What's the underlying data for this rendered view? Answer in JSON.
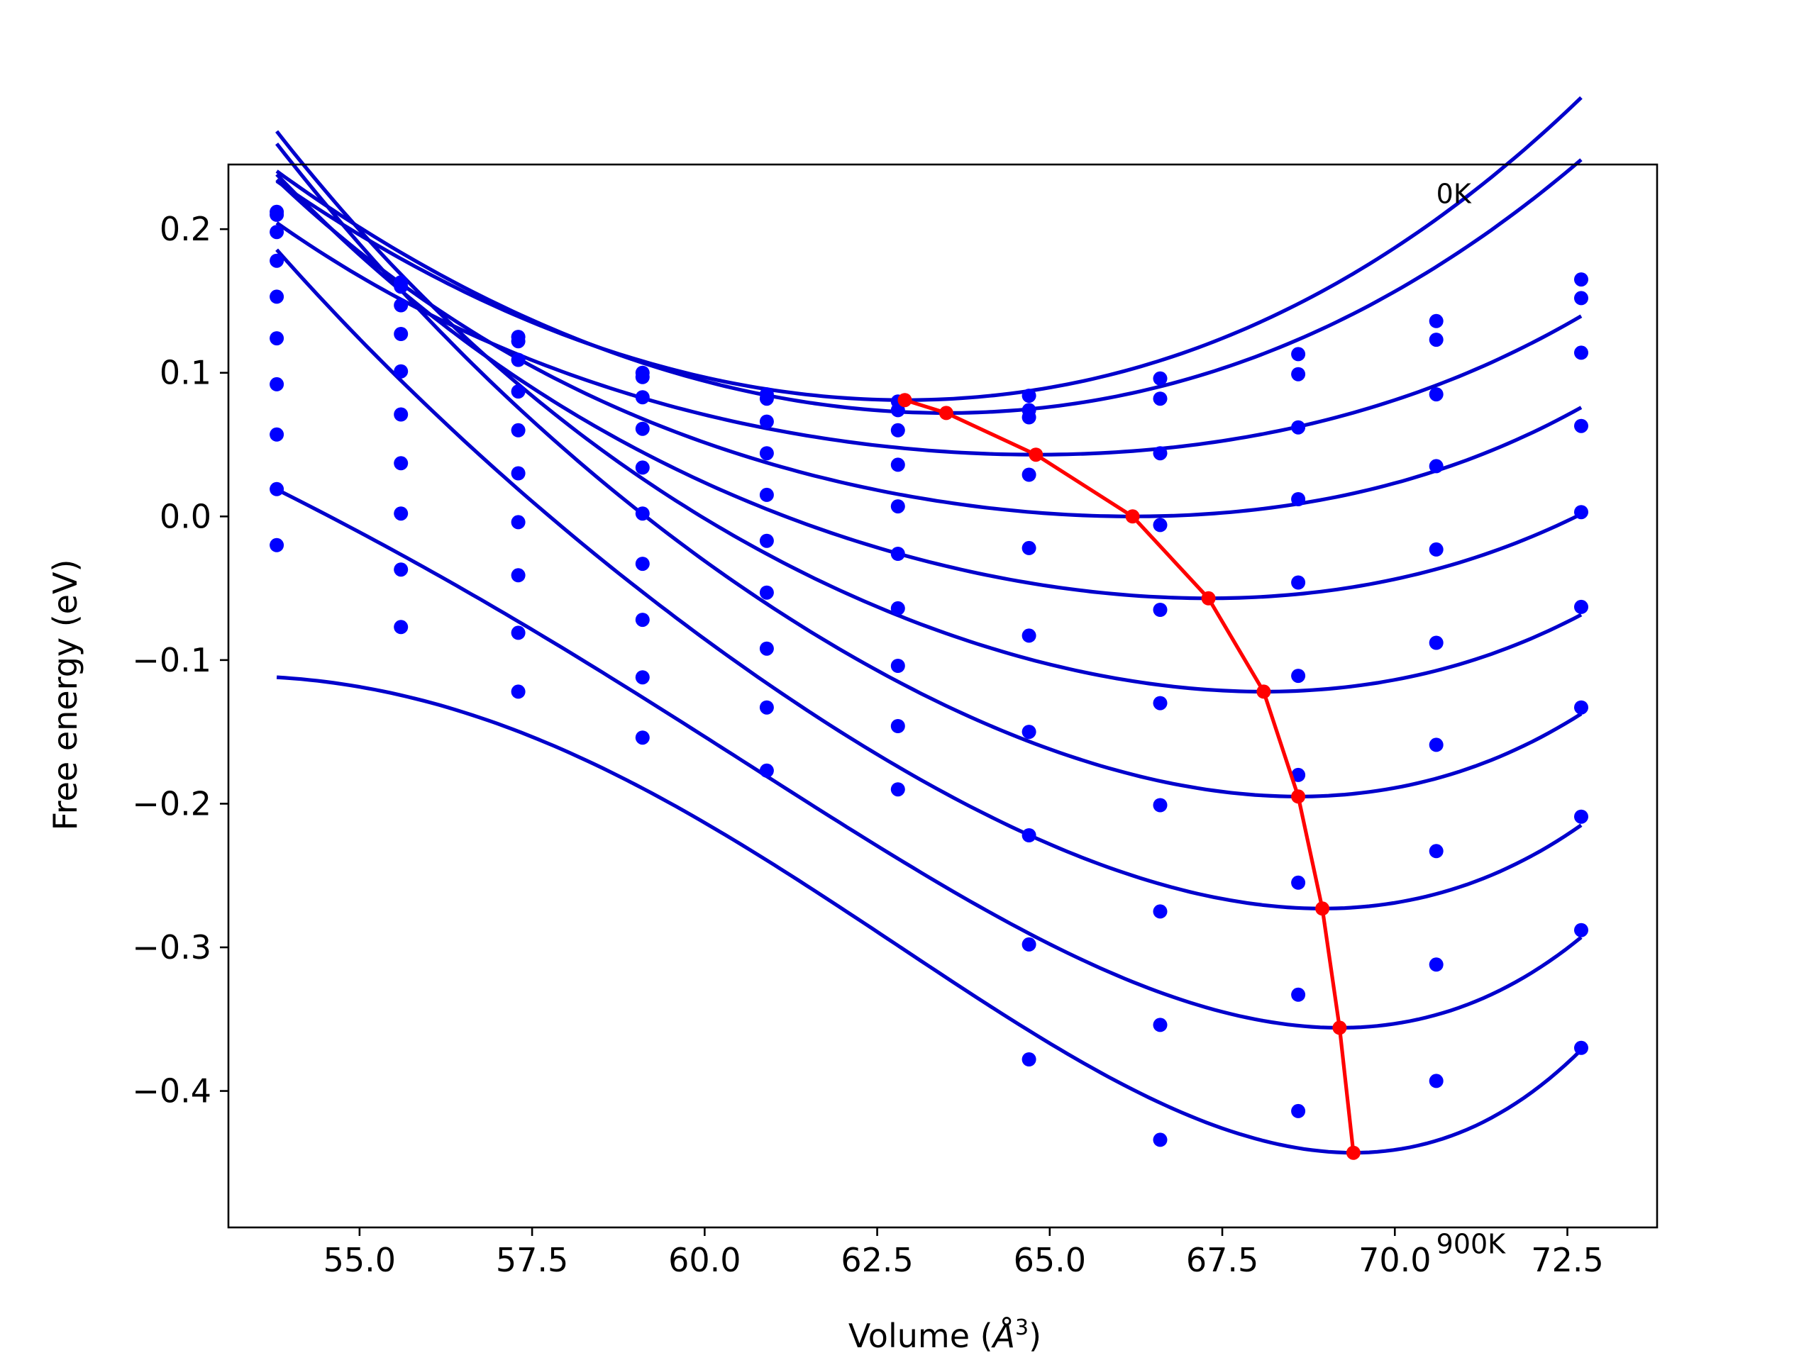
{
  "chart_data": {
    "type": "line",
    "xlabel": "Volume (",
    "xlabel_symbol": "Å",
    "xlabel_power": "3",
    "xlabel_close": ")",
    "ylabel": "Free energy (eV)",
    "xlim": [
      53.1,
      73.8
    ],
    "ylim": [
      -0.495,
      0.245
    ],
    "x_ticks": [
      55.0,
      57.5,
      60.0,
      62.5,
      65.0,
      67.5,
      70.0,
      72.5
    ],
    "x_tick_labels": [
      "55.0",
      "57.5",
      "60.0",
      "62.5",
      "65.0",
      "67.5",
      "70.0",
      "72.5"
    ],
    "y_ticks": [
      0.2,
      0.1,
      0.0,
      -0.1,
      -0.2,
      -0.3,
      -0.4
    ],
    "y_tick_labels": [
      "0.2",
      "0.1",
      "0.0",
      "−0.1",
      "−0.2",
      "−0.3",
      "−0.4"
    ],
    "annotations": [
      {
        "text": "0K",
        "x": 70.6,
        "y": 0.218
      },
      {
        "text": "900K",
        "x": 70.6,
        "y": -0.513
      }
    ],
    "grid": false,
    "legend": "none",
    "colors": {
      "points": "#0000ff",
      "fits": "#0000cc",
      "minima": "#ff0000"
    },
    "data_volumes": [
      53.8,
      55.6,
      57.3,
      59.1,
      60.9,
      62.8,
      64.7,
      66.6,
      68.6,
      70.6,
      72.7
    ],
    "series": [
      {
        "points": [
          0.212,
          0.163,
          0.125,
          0.1,
          0.085,
          0.08,
          0.084,
          0.096,
          0.113,
          0.136,
          0.165
        ],
        "fit": {
          "x0": 62.9,
          "y0": 0.081,
          "a": 0.00193,
          "b": 1.8e-05,
          "c": 9e-07
        }
      },
      {
        "points": [
          0.21,
          0.16,
          0.122,
          0.097,
          0.082,
          0.074,
          0.074,
          0.082,
          0.099,
          0.123,
          0.152
        ],
        "fit": {
          "x0": 63.5,
          "y0": 0.072,
          "a": 0.00186,
          "b": 1.6e-05,
          "c": 9e-07
        }
      },
      {
        "points": [
          0.198,
          0.147,
          0.109,
          0.083,
          0.066,
          0.06,
          0.069,
          0.044,
          0.062,
          0.085,
          0.114
        ],
        "fit": {
          "x0": 64.8,
          "y0": 0.043,
          "a": 0.00124,
          "b": 1.9e-05,
          "c": 2.5e-06
        }
      },
      {
        "points": [
          0.178,
          0.127,
          0.087,
          0.061,
          0.044,
          0.036,
          0.029,
          -0.006,
          0.012,
          0.035,
          0.063
        ],
        "fit": {
          "x0": 66.2,
          "y0": 0.0,
          "a": 0.00142,
          "b": 3.5e-05,
          "c": 3.5e-06
        }
      },
      {
        "points": [
          0.153,
          0.101,
          0.06,
          0.034,
          0.015,
          0.007,
          -0.022,
          -0.065,
          -0.046,
          -0.023,
          0.003
        ],
        "fit": {
          "x0": 67.3,
          "y0": -0.057,
          "a": 0.00168,
          "b": 4.5e-05,
          "c": 3e-06
        }
      },
      {
        "points": [
          0.124,
          0.071,
          0.03,
          0.002,
          -0.017,
          -0.026,
          -0.083,
          -0.13,
          -0.111,
          -0.088,
          -0.063
        ],
        "fit": {
          "x0": 68.1,
          "y0": -0.122,
          "a": 0.00215,
          "b": 6.7e-05,
          "c": 3.5e-06
        }
      },
      {
        "points": [
          0.092,
          0.037,
          -0.004,
          -0.033,
          -0.053,
          -0.064,
          -0.15,
          -0.201,
          -0.18,
          -0.159,
          -0.133
        ],
        "fit": {
          "x0": 68.6,
          "y0": -0.195,
          "a": 0.0029,
          "b": 0.000112,
          "c": 3.8e-06
        }
      },
      {
        "points": [
          0.057,
          0.002,
          -0.041,
          -0.072,
          -0.092,
          -0.104,
          -0.222,
          -0.275,
          -0.255,
          -0.233,
          -0.209
        ],
        "fit": {
          "x0": 68.95,
          "y0": -0.273,
          "a": 0.00345,
          "b": 0.000164,
          "c": 4.5e-06
        }
      },
      {
        "points": [
          0.019,
          -0.037,
          -0.081,
          -0.112,
          -0.133,
          -0.146,
          -0.298,
          -0.354,
          -0.333,
          -0.312,
          -0.288
        ],
        "fit": {
          "x0": 69.2,
          "y0": -0.356,
          "a": 0.00424,
          "b": 0.000242,
          "c": 4.5e-06
        }
      },
      {
        "points": [
          -0.02,
          -0.077,
          -0.122,
          -0.154,
          -0.177,
          -0.19,
          -0.378,
          -0.434,
          -0.414,
          -0.393,
          -0.37
        ],
        "fit": {
          "x0": 69.4,
          "y0": -0.443,
          "a": 0.00536,
          "b": 0.00035,
          "c": 6e-06
        }
      }
    ],
    "minima": [
      {
        "x": 62.9,
        "y": 0.081
      },
      {
        "x": 63.5,
        "y": 0.072
      },
      {
        "x": 64.8,
        "y": 0.043
      },
      {
        "x": 66.2,
        "y": 0.0
      },
      {
        "x": 67.3,
        "y": -0.057
      },
      {
        "x": 68.1,
        "y": -0.122
      },
      {
        "x": 68.6,
        "y": -0.195
      },
      {
        "x": 68.95,
        "y": -0.273
      },
      {
        "x": 69.2,
        "y": -0.356
      },
      {
        "x": 69.4,
        "y": -0.443
      }
    ]
  }
}
